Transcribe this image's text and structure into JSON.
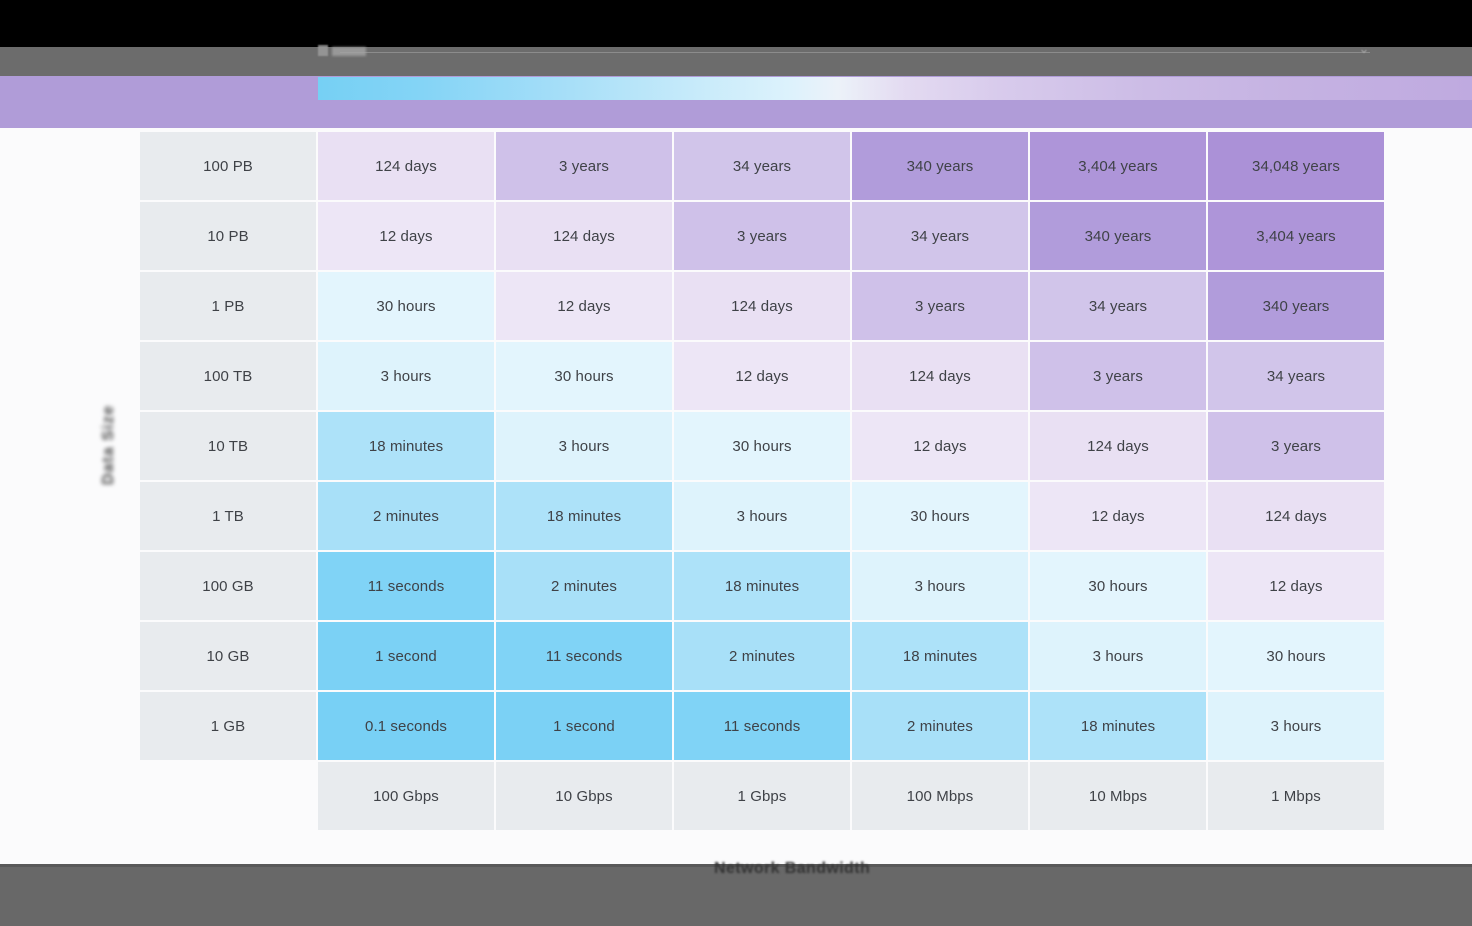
{
  "chrome": {
    "top_bar_color": "#000000",
    "toolbar_color": "#6c6c6c",
    "toolbar_chevron_glyph": "⌄",
    "footer_color": "#686868",
    "footer_edge_color": "#595959"
  },
  "header": {
    "band_color": "#b09cd8",
    "legend_position": "top"
  },
  "chart_data": {
    "type": "heatmap",
    "xlabel": "Network Bandwidth",
    "ylabel": "Data Size",
    "rows": [
      "100 PB",
      "10 PB",
      "1 PB",
      "100 TB",
      "10 TB",
      "1 TB",
      "100 GB",
      "10 GB",
      "1 GB"
    ],
    "columns": [
      "100 Gbps",
      "10 Gbps",
      "1 Gbps",
      "100 Mbps",
      "10 Mbps",
      "1 Mbps"
    ],
    "cells": [
      [
        "124 days",
        "3 years",
        "34 years",
        "340 years",
        "3,404 years",
        "34,048 years"
      ],
      [
        "12 days",
        "124 days",
        "3 years",
        "34 years",
        "340 years",
        "3,404 years"
      ],
      [
        "30 hours",
        "12 days",
        "124 days",
        "3 years",
        "34 years",
        "340 years"
      ],
      [
        "3 hours",
        "30 hours",
        "12 days",
        "124 days",
        "3 years",
        "34 years"
      ],
      [
        "18 minutes",
        "3 hours",
        "30 hours",
        "12 days",
        "124 days",
        "3 years"
      ],
      [
        "2 minutes",
        "18 minutes",
        "3 hours",
        "30 hours",
        "12 days",
        "124 days"
      ],
      [
        "11 seconds",
        "2 minutes",
        "18 minutes",
        "3 hours",
        "30 hours",
        "12 days"
      ],
      [
        "1 second",
        "11 seconds",
        "2 minutes",
        "18 minutes",
        "3 hours",
        "30 hours"
      ],
      [
        "0.1 seconds",
        "1 second",
        "11 seconds",
        "2 minutes",
        "18 minutes",
        "3 hours"
      ]
    ],
    "value_colors": {
      "0.1 seconds": "#78d0f5",
      "1 second": "#7bd1f5",
      "11 seconds": "#80d3f6",
      "2 minutes": "#a8e0f8",
      "18 minutes": "#ade2f9",
      "3 hours": "#def3fc",
      "30 hours": "#e3f5fd",
      "12 days": "#ede6f6",
      "124 days": "#e9e0f3",
      "3 years": "#cfc1e9",
      "34 years": "#d1c5ea",
      "340 years": "#b19cdb",
      "3,404 years": "#ae95d9",
      "34,048 years": "#ab91d7"
    },
    "label_cell_bg": "#e8ebee",
    "cell_text_color": "#3f4247",
    "legend_gradient_stops": [
      "#76d0f4 0%",
      "#84d4f6 9%",
      "#a5def8 21%",
      "#c8ebfa 33%",
      "#ddf2fc 41%",
      "#ecf2f9 45%",
      "#e3daf1 51%",
      "#d8cbec 59%",
      "#ccbce6 72%",
      "#c5b2e2 85%",
      "#bfaae0 100%"
    ]
  }
}
